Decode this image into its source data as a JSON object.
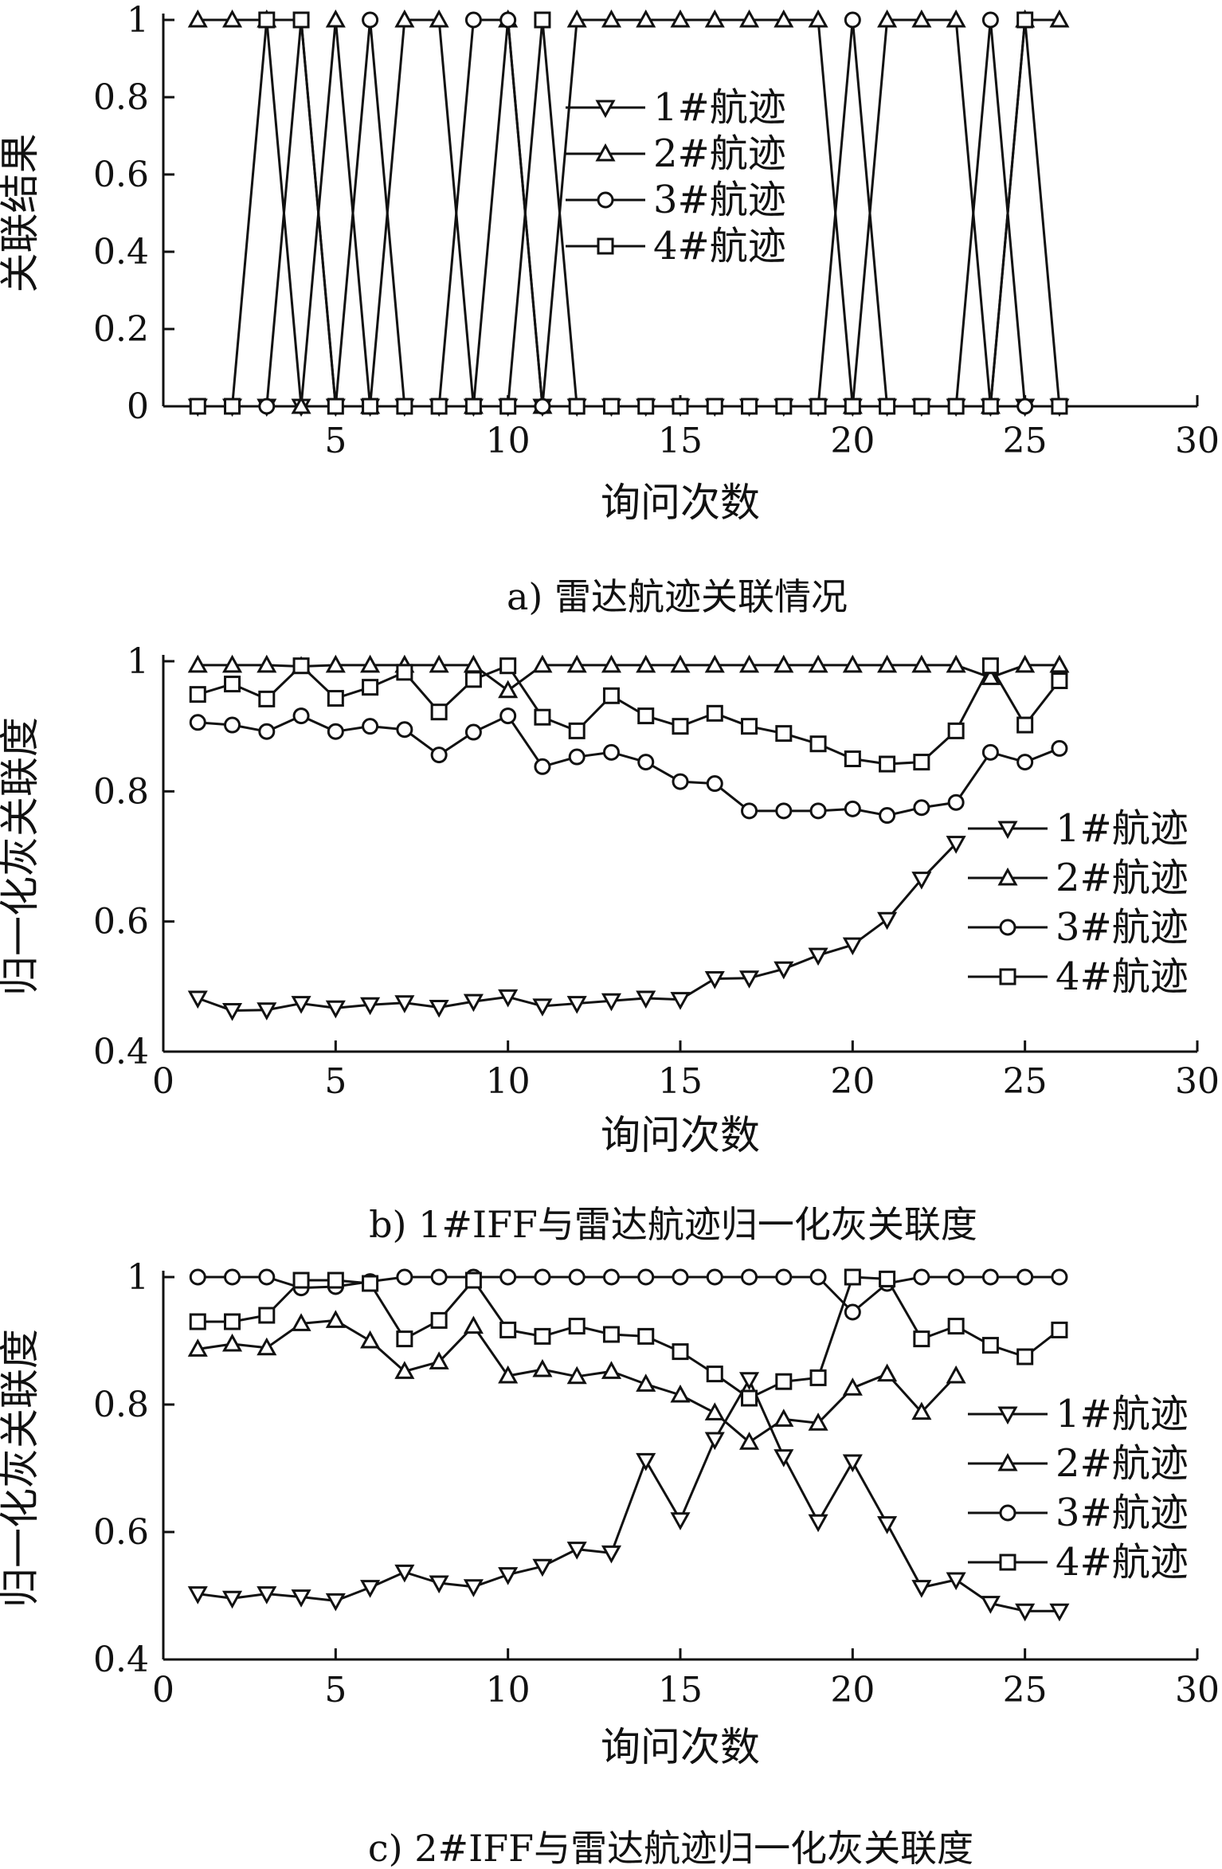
{
  "figure": {
    "captions": [
      "a) 雷达航迹关联情况",
      "b) 1#IFF与雷达航迹归一化灰关联度",
      "c) 2#IFF与雷达航迹归一化灰关联度"
    ]
  },
  "chart_data": [
    {
      "type": "line",
      "caption": "a) 雷达航迹关联情况",
      "xlabel": "询问次数",
      "ylabel": "关联结果",
      "xlim": [
        0,
        30
      ],
      "ylim": [
        0,
        1
      ],
      "xticks": [
        5,
        10,
        15,
        20,
        25,
        30
      ],
      "yticks": [
        0,
        0.2,
        0.4,
        0.6,
        0.8,
        1
      ],
      "ytick_labels": [
        "0",
        "0.2",
        "0.4",
        "0.6",
        "0.8",
        "1"
      ],
      "legend_position": "upper-center",
      "x": [
        1,
        2,
        3,
        4,
        5,
        6,
        7,
        8,
        9,
        10,
        11,
        12,
        13,
        14,
        15,
        16,
        17,
        18,
        19,
        20,
        21,
        22,
        23,
        24,
        25,
        26
      ],
      "series": [
        {
          "name": "1#航迹",
          "marker": "triangle-down",
          "values": [
            0,
            0,
            0,
            0,
            0,
            0,
            0,
            0,
            0,
            0,
            0,
            0,
            0,
            0,
            0,
            0,
            0,
            0,
            0,
            0,
            0,
            0,
            0,
            0,
            0,
            0
          ]
        },
        {
          "name": "2#航迹",
          "marker": "triangle-up",
          "values": [
            1,
            1,
            1,
            0,
            1,
            0,
            1,
            1,
            0,
            1,
            0,
            1,
            1,
            1,
            1,
            1,
            1,
            1,
            1,
            0,
            1,
            1,
            1,
            0,
            1,
            1
          ]
        },
        {
          "name": "3#航迹",
          "marker": "circle",
          "values": [
            0,
            0,
            0,
            1,
            0,
            1,
            0,
            0,
            1,
            1,
            0,
            0,
            0,
            0,
            0,
            0,
            0,
            0,
            0,
            1,
            0,
            0,
            0,
            1,
            0,
            0
          ]
        },
        {
          "name": "4#航迹",
          "marker": "square",
          "values": [
            0,
            0,
            1,
            1,
            0,
            0,
            0,
            0,
            0,
            0,
            1,
            0,
            0,
            0,
            0,
            0,
            0,
            0,
            0,
            0,
            0,
            0,
            0,
            0,
            1,
            0
          ]
        }
      ]
    },
    {
      "type": "line",
      "caption": "b) 1#IFF与雷达航迹归一化灰关联度",
      "xlabel": "询问次数",
      "ylabel": "归一化灰关联度",
      "xlim": [
        0,
        30
      ],
      "ylim": [
        0.4,
        1
      ],
      "xticks": [
        0,
        5,
        10,
        15,
        20,
        25,
        30
      ],
      "yticks": [
        0.4,
        0.6,
        0.8,
        1
      ],
      "ytick_labels": [
        "0.4",
        "0.6",
        "0.8",
        "1"
      ],
      "legend_position": "right",
      "x": [
        1,
        2,
        3,
        4,
        5,
        6,
        7,
        8,
        9,
        10,
        11,
        12,
        13,
        14,
        15,
        16,
        17,
        18,
        19,
        20,
        21,
        22,
        23,
        24,
        25,
        26
      ],
      "series": [
        {
          "name": "1#航迹",
          "marker": "triangle-down",
          "values": [
            0.482,
            0.463,
            0.464,
            0.474,
            0.467,
            0.472,
            0.475,
            0.468,
            0.477,
            0.484,
            0.47,
            0.474,
            0.478,
            0.482,
            0.48,
            0.512,
            0.513,
            0.527,
            0.548,
            0.564,
            0.603,
            0.665,
            0.72,
            null,
            null,
            null
          ]
        },
        {
          "name": "2#航迹",
          "marker": "triangle-up",
          "values": [
            0.994,
            0.994,
            0.994,
            0.992,
            0.994,
            0.994,
            0.994,
            0.994,
            0.994,
            0.955,
            0.994,
            0.994,
            0.994,
            0.994,
            0.994,
            0.994,
            0.994,
            0.994,
            0.994,
            0.994,
            0.994,
            0.994,
            0.994,
            0.975,
            0.994,
            0.994
          ]
        },
        {
          "name": "3#航迹",
          "marker": "circle",
          "values": [
            0.906,
            0.902,
            0.892,
            0.916,
            0.892,
            0.9,
            0.895,
            0.856,
            0.891,
            0.916,
            0.838,
            0.853,
            0.86,
            0.845,
            0.815,
            0.812,
            0.77,
            0.77,
            0.77,
            0.773,
            0.763,
            0.775,
            0.783,
            0.86,
            0.845,
            0.866
          ]
        },
        {
          "name": "4#航迹",
          "marker": "square",
          "values": [
            0.949,
            0.965,
            0.942,
            0.993,
            0.943,
            0.96,
            0.983,
            0.922,
            0.972,
            0.993,
            0.914,
            0.893,
            0.947,
            0.916,
            0.9,
            0.92,
            0.9,
            0.889,
            0.873,
            0.85,
            0.842,
            0.845,
            0.893,
            0.993,
            0.902,
            0.97
          ]
        }
      ]
    },
    {
      "type": "line",
      "caption": "c) 2#IFF与雷达航迹归一化灰关联度",
      "xlabel": "询问次数",
      "ylabel": "归一化灰关联度",
      "xlim": [
        0,
        30
      ],
      "ylim": [
        0.4,
        1
      ],
      "xticks": [
        0,
        5,
        10,
        15,
        20,
        25,
        30
      ],
      "yticks": [
        0.4,
        0.6,
        0.8,
        1
      ],
      "ytick_labels": [
        "0.4",
        "0.6",
        "0.8",
        "1"
      ],
      "legend_position": "right",
      "x": [
        1,
        2,
        3,
        4,
        5,
        6,
        7,
        8,
        9,
        10,
        11,
        12,
        13,
        14,
        15,
        16,
        17,
        18,
        19,
        20,
        21,
        22,
        23,
        24,
        25,
        26
      ],
      "series": [
        {
          "name": "1#航迹",
          "marker": "triangle-down",
          "values": [
            0.503,
            0.496,
            0.503,
            0.498,
            0.492,
            0.513,
            0.537,
            0.52,
            0.514,
            0.533,
            0.546,
            0.573,
            0.567,
            0.712,
            0.619,
            0.745,
            0.839,
            0.718,
            0.616,
            0.71,
            0.613,
            0.513,
            0.525,
            0.488,
            0.476,
            0.476
          ]
        },
        {
          "name": "2#航迹",
          "marker": "triangle-up",
          "values": [
            0.887,
            0.895,
            0.889,
            0.927,
            0.932,
            0.9,
            0.852,
            0.867,
            0.923,
            0.845,
            0.855,
            0.844,
            0.852,
            0.832,
            0.815,
            0.787,
            0.741,
            0.777,
            0.771,
            0.826,
            0.848,
            0.788,
            0.845,
            null,
            null,
            null
          ]
        },
        {
          "name": "3#航迹",
          "marker": "circle",
          "values": [
            1,
            1,
            1,
            0.983,
            0.985,
            0.993,
            1,
            1,
            1,
            1,
            1,
            1,
            1,
            1,
            1,
            1,
            1,
            1,
            1,
            0.945,
            0.99,
            1,
            1,
            1,
            1,
            1
          ]
        },
        {
          "name": "4#航迹",
          "marker": "square",
          "values": [
            0.93,
            0.93,
            0.94,
            0.995,
            0.995,
            0.99,
            0.903,
            0.932,
            0.995,
            0.917,
            0.907,
            0.923,
            0.91,
            0.907,
            0.883,
            0.848,
            0.81,
            0.836,
            0.842,
            1,
            0.997,
            0.903,
            0.923,
            0.893,
            0.875,
            0.917
          ]
        }
      ]
    }
  ]
}
